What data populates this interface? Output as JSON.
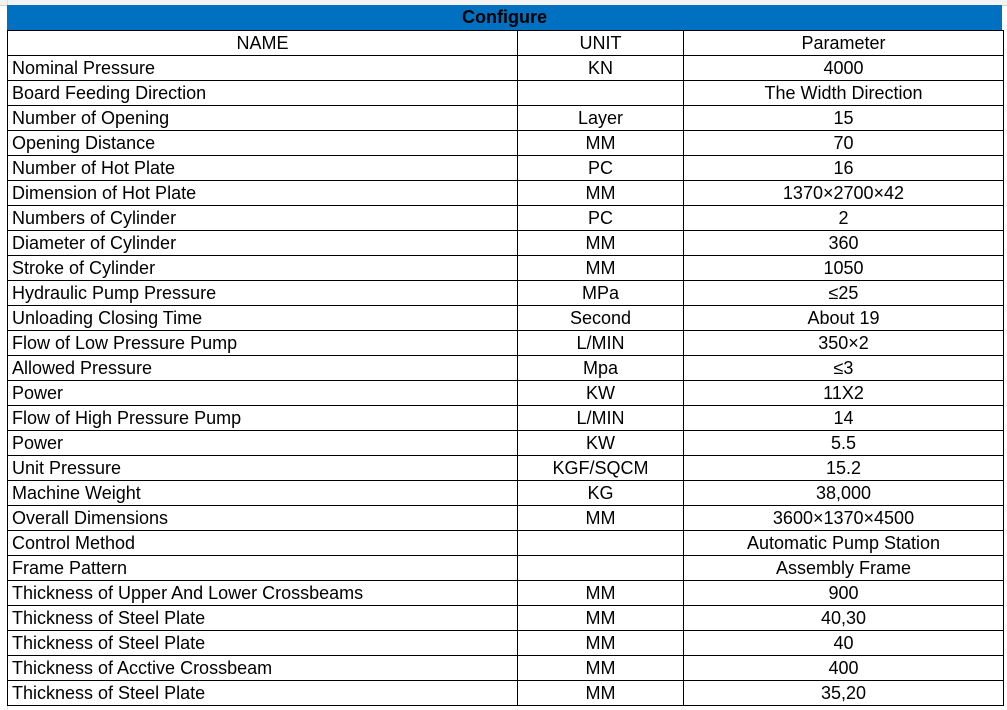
{
  "title": "Configure",
  "headers": [
    "NAME",
    "UNIT",
    "Parameter"
  ],
  "rows": [
    {
      "name": "Nominal Pressure",
      "unit": "KN",
      "value": "4000"
    },
    {
      "name": "Board Feeding Direction",
      "unit": "",
      "value": "The Width Direction"
    },
    {
      "name": "Number of Opening",
      "unit": "Layer",
      "value": "15"
    },
    {
      "name": "Opening Distance",
      "unit": "MM",
      "value": "70"
    },
    {
      "name": "Number of Hot Plate",
      "unit": "PC",
      "value": "16"
    },
    {
      "name": "Dimension of  Hot Plate",
      "unit": "MM",
      "value": "1370×2700×42"
    },
    {
      "name": "Numbers of Cylinder",
      "unit": "PC",
      "value": "2"
    },
    {
      "name": "Diameter of Cylinder",
      "unit": "MM",
      "value": "360"
    },
    {
      "name": "Stroke of Cylinder",
      "unit": "MM",
      "value": "1050"
    },
    {
      "name": "Hydraulic Pump Pressure",
      "unit": "MPa",
      "value": "≤25"
    },
    {
      "name": "Unloading Closing Time",
      "unit": "Second",
      "value": "About 19"
    },
    {
      "name": "Flow of Low Pressure Pump",
      "unit": "L/MIN",
      "value": "350×2"
    },
    {
      "name": "Allowed Pressure",
      "unit": "Mpa",
      "value": "≤3"
    },
    {
      "name": "Power",
      "unit": "KW",
      "value": "11X2"
    },
    {
      "name": "Flow of High Pressure Pump",
      "unit": "L/MIN",
      "value": "14"
    },
    {
      "name": "Power",
      "unit": "KW",
      "value": "5.5"
    },
    {
      "name": "Unit Pressure",
      "unit": "KGF/SQCM",
      "value": "15.2"
    },
    {
      "name": "Machine Weight",
      "unit": "KG",
      "value": "38,000"
    },
    {
      "name": "Overall Dimensions",
      "unit": "MM",
      "value": "3600×1370×4500"
    },
    {
      "name": "Control Method",
      "unit": "",
      "value": "Automatic Pump Station"
    },
    {
      "name": "Frame Pattern",
      "unit": "",
      "value": "Assembly Frame"
    },
    {
      "name": "Thickness of Upper And  Lower Crossbeams",
      "unit": "MM",
      "value": "900"
    },
    {
      "name": "Thickness of Steel Plate",
      "unit": "MM",
      "value": "40,30"
    },
    {
      "name": "Thickness of Steel Plate",
      "unit": "MM",
      "value": "40"
    },
    {
      "name": "Thickness of Acctive Crossbeam",
      "unit": "MM",
      "value": "400"
    },
    {
      "name": "Thickness of Steel Plate",
      "unit": "MM",
      "value": "35,20"
    }
  ]
}
